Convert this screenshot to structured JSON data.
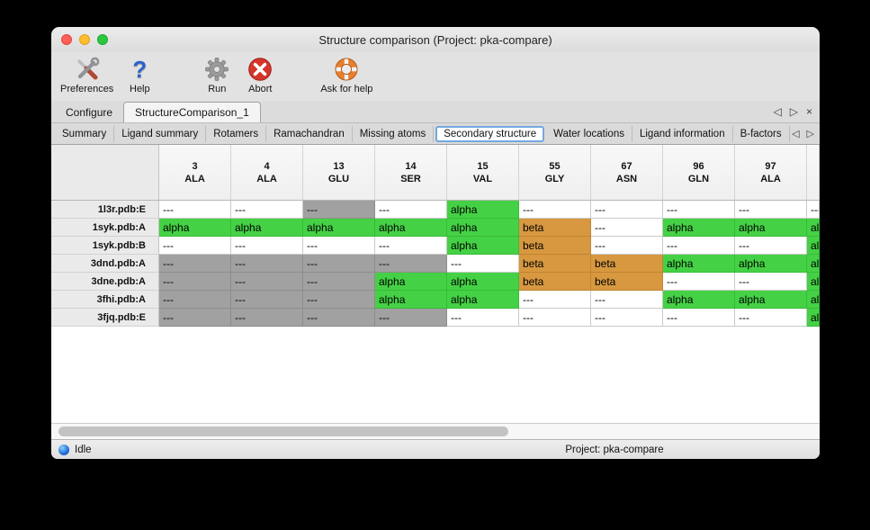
{
  "window": {
    "title": "Structure comparison (Project: pka-compare)"
  },
  "toolbar": {
    "items": [
      {
        "label": "Preferences",
        "icon": "tools-icon"
      },
      {
        "label": "Help",
        "icon": "question-mark-icon"
      },
      {
        "label": "Run",
        "icon": "gear-icon"
      },
      {
        "label": "Abort",
        "icon": "abort-x-icon"
      },
      {
        "label": "Ask for help",
        "icon": "lifebuoy-icon"
      }
    ]
  },
  "doc_tabs": {
    "tabs": [
      {
        "label": "Configure",
        "active": false
      },
      {
        "label": "StructureComparison_1",
        "active": true
      }
    ]
  },
  "tab_nav": {
    "prev": "◁",
    "next": "▷",
    "close": "×"
  },
  "sub_tabs": {
    "tabs": [
      "Summary",
      "Ligand summary",
      "Rotamers",
      "Ramachandran",
      "Missing atoms",
      "Secondary structure",
      "Water locations",
      "Ligand information",
      "B-factors"
    ],
    "selected": "Secondary structure",
    "prev": "◁",
    "next": "▷"
  },
  "table": {
    "columns": [
      {
        "number": "3",
        "residue": "ALA"
      },
      {
        "number": "4",
        "residue": "ALA"
      },
      {
        "number": "13",
        "residue": "GLU"
      },
      {
        "number": "14",
        "residue": "SER"
      },
      {
        "number": "15",
        "residue": "VAL"
      },
      {
        "number": "55",
        "residue": "GLY"
      },
      {
        "number": "67",
        "residue": "ASN"
      },
      {
        "number": "96",
        "residue": "GLN"
      },
      {
        "number": "97",
        "residue": "ALA"
      },
      {
        "number": "",
        "residue": ""
      }
    ],
    "rows": [
      {
        "name": "1l3r.pdb:E",
        "cells": [
          {
            "text": "---",
            "style": "plain"
          },
          {
            "text": "---",
            "style": "plain"
          },
          {
            "text": "---",
            "style": "missing"
          },
          {
            "text": "---",
            "style": "plain"
          },
          {
            "text": "alpha",
            "style": "alpha"
          },
          {
            "text": "---",
            "style": "plain"
          },
          {
            "text": "---",
            "style": "plain"
          },
          {
            "text": "---",
            "style": "plain"
          },
          {
            "text": "---",
            "style": "plain"
          },
          {
            "text": "---",
            "style": "plain"
          }
        ]
      },
      {
        "name": "1syk.pdb:A",
        "cells": [
          {
            "text": "alpha",
            "style": "alpha"
          },
          {
            "text": "alpha",
            "style": "alpha"
          },
          {
            "text": "alpha",
            "style": "alpha"
          },
          {
            "text": "alpha",
            "style": "alpha"
          },
          {
            "text": "alpha",
            "style": "alpha"
          },
          {
            "text": "beta",
            "style": "beta"
          },
          {
            "text": "---",
            "style": "plain"
          },
          {
            "text": "alpha",
            "style": "alpha"
          },
          {
            "text": "alpha",
            "style": "alpha"
          },
          {
            "text": "alpha",
            "style": "alpha"
          }
        ]
      },
      {
        "name": "1syk.pdb:B",
        "cells": [
          {
            "text": "---",
            "style": "plain"
          },
          {
            "text": "---",
            "style": "plain"
          },
          {
            "text": "---",
            "style": "plain"
          },
          {
            "text": "---",
            "style": "plain"
          },
          {
            "text": "alpha",
            "style": "alpha"
          },
          {
            "text": "beta",
            "style": "beta"
          },
          {
            "text": "---",
            "style": "plain"
          },
          {
            "text": "---",
            "style": "plain"
          },
          {
            "text": "---",
            "style": "plain"
          },
          {
            "text": "alpha",
            "style": "alpha"
          }
        ]
      },
      {
        "name": "3dnd.pdb:A",
        "cells": [
          {
            "text": "---",
            "style": "missing"
          },
          {
            "text": "---",
            "style": "missing"
          },
          {
            "text": "---",
            "style": "missing"
          },
          {
            "text": "---",
            "style": "missing"
          },
          {
            "text": "---",
            "style": "plain"
          },
          {
            "text": "beta",
            "style": "beta"
          },
          {
            "text": "beta",
            "style": "beta"
          },
          {
            "text": "alpha",
            "style": "alpha"
          },
          {
            "text": "alpha",
            "style": "alpha"
          },
          {
            "text": "alpha",
            "style": "alpha"
          }
        ]
      },
      {
        "name": "3dne.pdb:A",
        "cells": [
          {
            "text": "---",
            "style": "missing"
          },
          {
            "text": "---",
            "style": "missing"
          },
          {
            "text": "---",
            "style": "missing"
          },
          {
            "text": "alpha",
            "style": "alpha"
          },
          {
            "text": "alpha",
            "style": "alpha"
          },
          {
            "text": "beta",
            "style": "beta"
          },
          {
            "text": "beta",
            "style": "beta"
          },
          {
            "text": "---",
            "style": "plain"
          },
          {
            "text": "---",
            "style": "plain"
          },
          {
            "text": "alpha",
            "style": "alpha"
          }
        ]
      },
      {
        "name": "3fhi.pdb:A",
        "cells": [
          {
            "text": "---",
            "style": "missing"
          },
          {
            "text": "---",
            "style": "missing"
          },
          {
            "text": "---",
            "style": "missing"
          },
          {
            "text": "alpha",
            "style": "alpha"
          },
          {
            "text": "alpha",
            "style": "alpha"
          },
          {
            "text": "---",
            "style": "plain"
          },
          {
            "text": "---",
            "style": "plain"
          },
          {
            "text": "alpha",
            "style": "alpha"
          },
          {
            "text": "alpha",
            "style": "alpha"
          },
          {
            "text": "alpha",
            "style": "alpha"
          }
        ]
      },
      {
        "name": "3fjq.pdb:E",
        "cells": [
          {
            "text": "---",
            "style": "missing"
          },
          {
            "text": "---",
            "style": "missing"
          },
          {
            "text": "---",
            "style": "missing"
          },
          {
            "text": "---",
            "style": "missing"
          },
          {
            "text": "---",
            "style": "plain"
          },
          {
            "text": "---",
            "style": "plain"
          },
          {
            "text": "---",
            "style": "plain"
          },
          {
            "text": "---",
            "style": "plain"
          },
          {
            "text": "---",
            "style": "plain"
          },
          {
            "text": "alpha",
            "style": "alpha"
          }
        ]
      }
    ]
  },
  "statusbar": {
    "status": "Idle",
    "project": "Project: pka-compare"
  },
  "colors": {
    "alpha_green": "#45d145",
    "beta_orange": "#d79840",
    "missing_gray": "#a1a1a1"
  }
}
